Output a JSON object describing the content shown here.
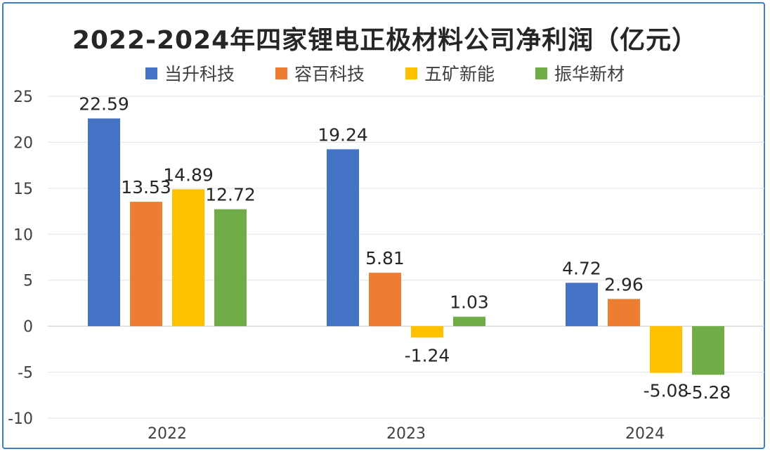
{
  "chart_data": {
    "type": "bar",
    "title": "2022-2024年四家锂电正极材料公司净利润（亿元）",
    "xlabel": "",
    "ylabel": "",
    "categories": [
      "2022",
      "2023",
      "2024"
    ],
    "ylim": [
      -10,
      25
    ],
    "yticks": [
      "25",
      "20",
      "15",
      "10",
      "5",
      "0",
      "-5",
      "-10"
    ],
    "grid": true,
    "legend_position": "top",
    "series": [
      {
        "name": "当升科技",
        "color": "#4472c4",
        "values": [
          22.59,
          19.24,
          4.72
        ],
        "labels": [
          "22.59",
          "19.24",
          "4.72"
        ]
      },
      {
        "name": "容百科技",
        "color": "#ed7d31",
        "values": [
          13.53,
          5.81,
          2.96
        ],
        "labels": [
          "13.53",
          "5.81",
          "2.96"
        ]
      },
      {
        "name": "五矿新能",
        "color": "#ffc000",
        "values": [
          14.89,
          -1.24,
          -5.08
        ],
        "labels": [
          "14.89",
          "-1.24",
          "-5.08"
        ]
      },
      {
        "name": "振华新材",
        "color": "#70ad47",
        "values": [
          12.72,
          1.03,
          -5.28
        ],
        "labels": [
          "12.72",
          "1.03",
          "-5.28"
        ]
      }
    ]
  }
}
